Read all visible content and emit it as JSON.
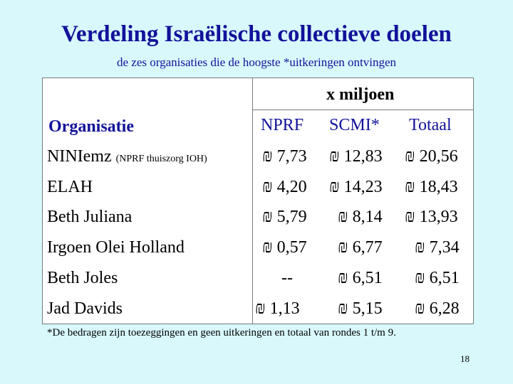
{
  "title": "Verdeling Israëlische collectieve doelen",
  "subtitle": "de zes organisaties die de hoogste *uitkeringen ontvingen",
  "table": {
    "unit_header": "x miljoen",
    "header_org": "Organisatie",
    "header_nprf": "NPRF",
    "header_scmi": "SCMI*",
    "header_total": "Totaal",
    "currency_symbol": "₪",
    "rows": [
      {
        "org": "NINIemz",
        "org_note": "(NPRF thuiszorg IOH)",
        "nprf": "7,73",
        "scmi": "12,83",
        "total": "20,56"
      },
      {
        "org": "ELAH",
        "nprf": "4,20",
        "scmi": "14,23",
        "total": "18,43"
      },
      {
        "org": "Beth Juliana",
        "nprf": "5,79",
        "scmi": "8,14",
        "total": "13,93"
      },
      {
        "org": "Irgoen Olei Holland",
        "nprf": "0,57",
        "scmi": "6,77",
        "total": "7,34"
      },
      {
        "org": "Beth Joles",
        "nprf": "--",
        "scmi": "6,51",
        "total": "6,51"
      },
      {
        "org": "Jad Davids",
        "nprf": "1,13",
        "scmi": "5,15",
        "total": "6,28"
      }
    ]
  },
  "footnote": "*De bedragen zijn toezeggingen en geen uitkeringen en totaal van rondes 1 t/m 9.",
  "page_number": "18",
  "colors": {
    "background": "#d8f8fc",
    "title": "#12129a",
    "table_bg": "#ffffff"
  }
}
